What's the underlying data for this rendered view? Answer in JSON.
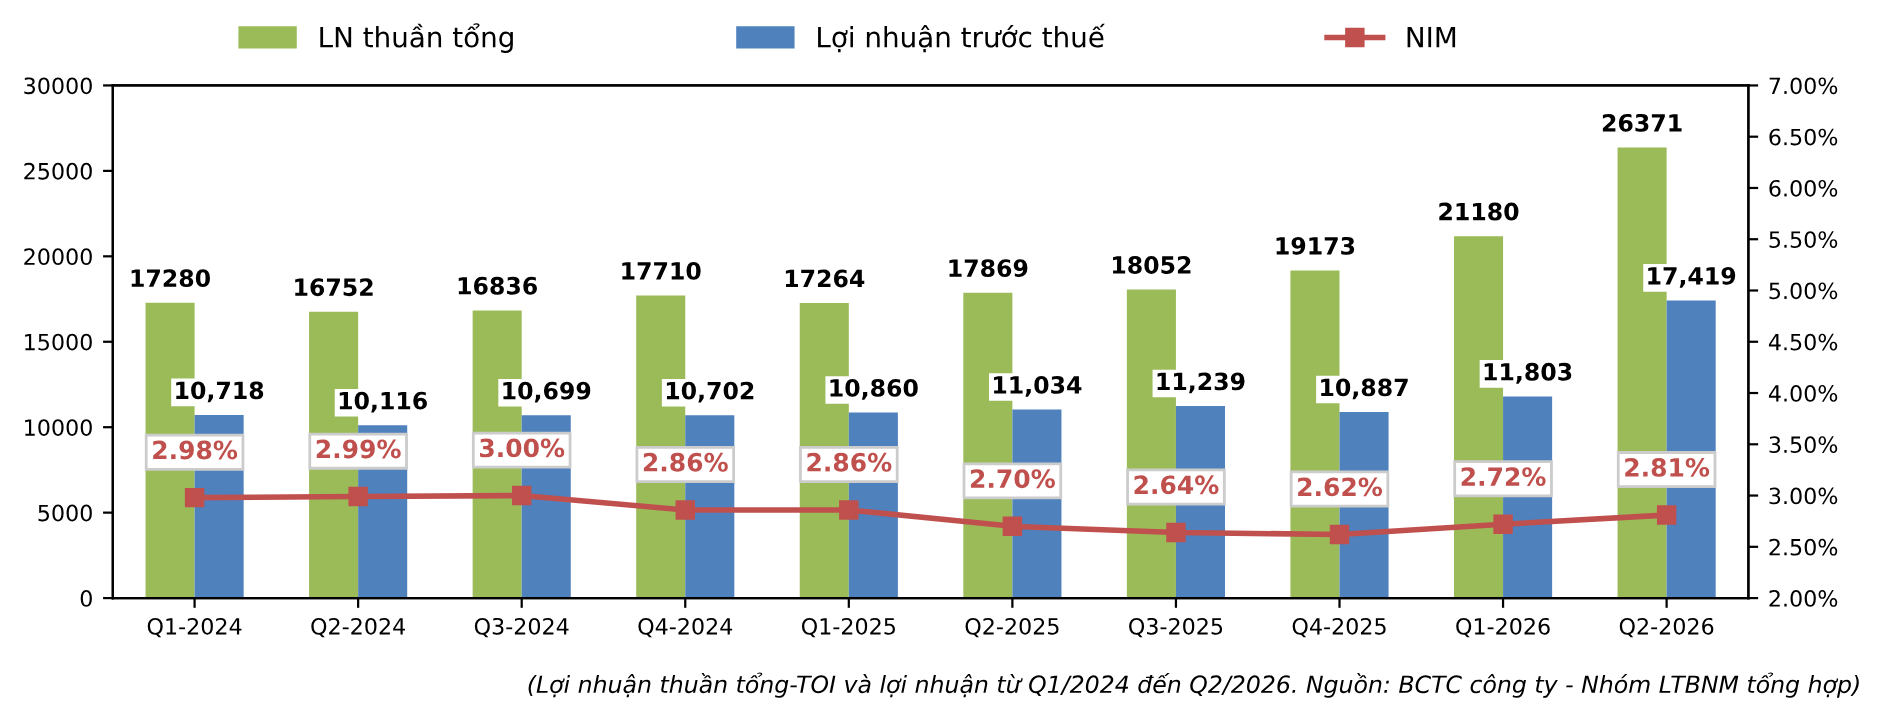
{
  "chart_data": {
    "type": "bar",
    "categories": [
      "Q1-2024",
      "Q2-2024",
      "Q3-2024",
      "Q4-2024",
      "Q1-2025",
      "Q2-2025",
      "Q3-2025",
      "Q4-2025",
      "Q1-2026",
      "Q2-2026"
    ],
    "series": [
      {
        "name": "LN thuần tổng",
        "color": "#9bbb59",
        "values": [
          17280,
          16752,
          16836,
          17710,
          17264,
          17869,
          18052,
          19173,
          21180,
          26371
        ],
        "value_labels": [
          "17280",
          "16752",
          "16836",
          "17710",
          "17264",
          "17869",
          "18052",
          "19173",
          "21180",
          "26371"
        ]
      },
      {
        "name": "Lợi nhuận trước thuế",
        "color": "#4f81bd",
        "values": [
          10718,
          10116,
          10699,
          10702,
          10860,
          11034,
          11239,
          10887,
          11803,
          17419
        ],
        "value_labels": [
          "10,718",
          "10,116",
          "10,699",
          "10,702",
          "10,860",
          "11,034",
          "11,239",
          "10,887",
          "11,803",
          "17,419"
        ]
      },
      {
        "name": "NIM",
        "type": "line",
        "axis": "y2",
        "color": "#c0504d",
        "marker": "square",
        "values": [
          2.98,
          2.99,
          3.0,
          2.86,
          2.86,
          2.7,
          2.64,
          2.62,
          2.72,
          2.81
        ],
        "value_labels": [
          "2.98%",
          "2.99%",
          "3.00%",
          "2.86%",
          "2.86%",
          "2.70%",
          "2.64%",
          "2.62%",
          "2.72%",
          "2.81%"
        ]
      }
    ],
    "ylim": [
      0,
      30000
    ],
    "yticks": [
      0,
      5000,
      10000,
      15000,
      20000,
      25000,
      30000
    ],
    "y2lim": [
      2,
      7
    ],
    "y2ticks": [
      {
        "value": 2,
        "label": "2.00%"
      },
      {
        "value": 2.5,
        "label": "2.50%"
      },
      {
        "value": 3,
        "label": "3.00%"
      },
      {
        "value": 3.5,
        "label": "3.50%"
      },
      {
        "value": 4,
        "label": "4.00%"
      },
      {
        "value": 4.5,
        "label": "4.50%"
      },
      {
        "value": 5,
        "label": "5.00%"
      },
      {
        "value": 5.5,
        "label": "5.50%"
      },
      {
        "value": 6,
        "label": "6.00%"
      },
      {
        "value": 6.5,
        "label": "6.50%"
      },
      {
        "value": 7,
        "label": "7.00%"
      }
    ],
    "legend": "top",
    "grid": false,
    "annotations": [
      "(Lợi nhuận thuần tổng-TOI và lợi nhuận từ Q1/2024 đến Q2/2026. Nguồn: BCTC công ty - Nhóm LTBNM tổng hợp)"
    ]
  }
}
